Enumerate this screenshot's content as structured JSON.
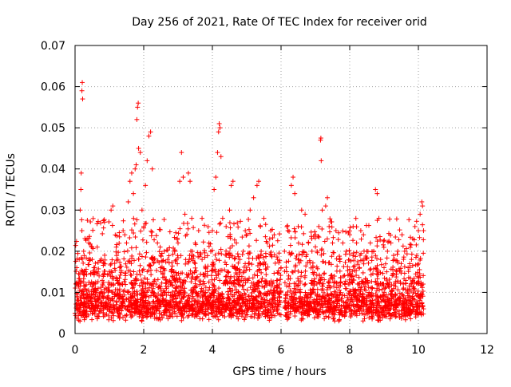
{
  "chart_data": {
    "type": "scatter",
    "title": "Day 256 of 2021, Rate Of TEC Index for receiver orid",
    "xlabel": "GPS time / hours",
    "ylabel": "ROTI / TECUs",
    "xlim": [
      0,
      12
    ],
    "ylim": [
      0,
      0.07
    ],
    "grid": true,
    "marker": "+",
    "color": "#ff0000",
    "x_ticks": [
      0,
      2,
      4,
      6,
      8,
      10,
      12
    ],
    "x_tick_labels": [
      "0",
      "2",
      "4",
      "6",
      "8",
      "10",
      "12"
    ],
    "y_ticks": [
      0,
      0.01,
      0.02,
      0.03,
      0.04,
      0.05,
      0.06,
      0.07
    ],
    "y_tick_labels": [
      "0",
      "0.01",
      "0.02",
      "0.03",
      "0.04",
      "0.05",
      "0.06",
      "0.07"
    ],
    "series": [
      {
        "name": "ROTI",
        "points": [
          [
            0.05,
            0.016
          ],
          [
            0.08,
            0.012
          ],
          [
            0.1,
            0.008
          ],
          [
            0.12,
            0.018
          ],
          [
            0.15,
            0.03
          ],
          [
            0.17,
            0.035
          ],
          [
            0.18,
            0.039
          ],
          [
            0.2,
            0.025
          ],
          [
            0.2,
            0.059
          ],
          [
            0.21,
            0.061
          ],
          [
            0.22,
            0.057
          ],
          [
            0.25,
            0.02
          ],
          [
            0.3,
            0.015
          ],
          [
            0.35,
            0.023
          ],
          [
            0.4,
            0.022
          ],
          [
            0.45,
            0.012
          ],
          [
            0.5,
            0.018
          ],
          [
            0.55,
            0.016
          ],
          [
            0.6,
            0.01
          ],
          [
            0.7,
            0.014
          ],
          [
            0.8,
            0.012
          ],
          [
            0.9,
            0.011
          ],
          [
            1.0,
            0.012
          ],
          [
            1.05,
            0.03
          ],
          [
            1.1,
            0.031
          ],
          [
            1.2,
            0.021
          ],
          [
            1.25,
            0.018
          ],
          [
            1.3,
            0.016
          ],
          [
            1.4,
            0.025
          ],
          [
            1.45,
            0.024
          ],
          [
            1.5,
            0.022
          ],
          [
            1.55,
            0.032
          ],
          [
            1.6,
            0.037
          ],
          [
            1.65,
            0.039
          ],
          [
            1.7,
            0.034
          ],
          [
            1.75,
            0.04
          ],
          [
            1.78,
            0.041
          ],
          [
            1.8,
            0.052
          ],
          [
            1.82,
            0.055
          ],
          [
            1.84,
            0.056
          ],
          [
            1.85,
            0.045
          ],
          [
            1.9,
            0.044
          ],
          [
            1.95,
            0.03
          ],
          [
            2.0,
            0.026
          ],
          [
            2.05,
            0.036
          ],
          [
            2.1,
            0.042
          ],
          [
            2.15,
            0.048
          ],
          [
            2.2,
            0.049
          ],
          [
            2.25,
            0.04
          ],
          [
            2.3,
            0.018
          ],
          [
            2.4,
            0.022
          ],
          [
            2.5,
            0.015
          ],
          [
            2.6,
            0.02
          ],
          [
            2.7,
            0.018
          ],
          [
            2.8,
            0.015
          ],
          [
            2.9,
            0.02
          ],
          [
            3.0,
            0.022
          ],
          [
            3.05,
            0.037
          ],
          [
            3.1,
            0.044
          ],
          [
            3.15,
            0.038
          ],
          [
            3.2,
            0.029
          ],
          [
            3.3,
            0.039
          ],
          [
            3.35,
            0.037
          ],
          [
            3.4,
            0.028
          ],
          [
            3.5,
            0.022
          ],
          [
            3.6,
            0.025
          ],
          [
            3.7,
            0.018
          ],
          [
            3.8,
            0.016
          ],
          [
            3.9,
            0.022
          ],
          [
            4.0,
            0.025
          ],
          [
            4.05,
            0.035
          ],
          [
            4.1,
            0.038
          ],
          [
            4.15,
            0.044
          ],
          [
            4.18,
            0.049
          ],
          [
            4.2,
            0.051
          ],
          [
            4.22,
            0.05
          ],
          [
            4.25,
            0.043
          ],
          [
            4.3,
            0.028
          ],
          [
            4.4,
            0.026
          ],
          [
            4.5,
            0.03
          ],
          [
            4.55,
            0.036
          ],
          [
            4.6,
            0.037
          ],
          [
            4.7,
            0.022
          ],
          [
            4.8,
            0.018
          ],
          [
            4.9,
            0.02
          ],
          [
            5.0,
            0.024
          ],
          [
            5.1,
            0.03
          ],
          [
            5.2,
            0.033
          ],
          [
            5.3,
            0.036
          ],
          [
            5.35,
            0.037
          ],
          [
            5.4,
            0.026
          ],
          [
            5.5,
            0.028
          ],
          [
            5.6,
            0.022
          ],
          [
            5.7,
            0.025
          ],
          [
            5.8,
            0.024
          ],
          [
            5.9,
            0.018
          ],
          [
            6.0,
            0.016
          ],
          [
            6.1,
            0.02
          ],
          [
            6.2,
            0.025
          ],
          [
            6.3,
            0.036
          ],
          [
            6.35,
            0.038
          ],
          [
            6.4,
            0.034
          ],
          [
            6.5,
            0.026
          ],
          [
            6.6,
            0.03
          ],
          [
            6.7,
            0.029
          ],
          [
            6.8,
            0.022
          ],
          [
            6.9,
            0.02
          ],
          [
            7.0,
            0.024
          ],
          [
            7.1,
            0.026
          ],
          [
            7.15,
            0.047
          ],
          [
            7.16,
            0.0475
          ],
          [
            7.17,
            0.042
          ],
          [
            7.2,
            0.03
          ],
          [
            7.3,
            0.031
          ],
          [
            7.35,
            0.033
          ],
          [
            7.4,
            0.026
          ],
          [
            7.5,
            0.022
          ],
          [
            7.6,
            0.025
          ],
          [
            7.7,
            0.018
          ],
          [
            7.8,
            0.022
          ],
          [
            7.9,
            0.02
          ],
          [
            8.0,
            0.024
          ],
          [
            8.1,
            0.026
          ],
          [
            8.2,
            0.022
          ],
          [
            8.3,
            0.019
          ],
          [
            8.4,
            0.024
          ],
          [
            8.5,
            0.02
          ],
          [
            8.6,
            0.022
          ],
          [
            8.7,
            0.02
          ],
          [
            8.75,
            0.035
          ],
          [
            8.8,
            0.034
          ],
          [
            8.85,
            0.028
          ],
          [
            8.9,
            0.018
          ],
          [
            9.0,
            0.016
          ],
          [
            9.1,
            0.02
          ],
          [
            9.2,
            0.022
          ],
          [
            9.3,
            0.018
          ],
          [
            9.4,
            0.02
          ],
          [
            9.5,
            0.017
          ],
          [
            9.6,
            0.02
          ],
          [
            9.7,
            0.016
          ],
          [
            9.8,
            0.018
          ],
          [
            9.9,
            0.026
          ],
          [
            10.0,
            0.025
          ],
          [
            10.05,
            0.029
          ],
          [
            10.1,
            0.032
          ],
          [
            10.12,
            0.031
          ],
          [
            10.15,
            0.025
          ],
          [
            10.15,
            0.006
          ]
        ]
      }
    ],
    "dense_band": {
      "x_start": 0,
      "x_end": 10.15,
      "y_min": 0.004,
      "y_max": 0.013,
      "gaps_hours": [
        [
          6.0,
          6.1
        ],
        [
          8.7,
          8.75
        ]
      ],
      "description_value_range": "bulk of ROTI values between 0.004 and 0.013 TECU"
    }
  }
}
